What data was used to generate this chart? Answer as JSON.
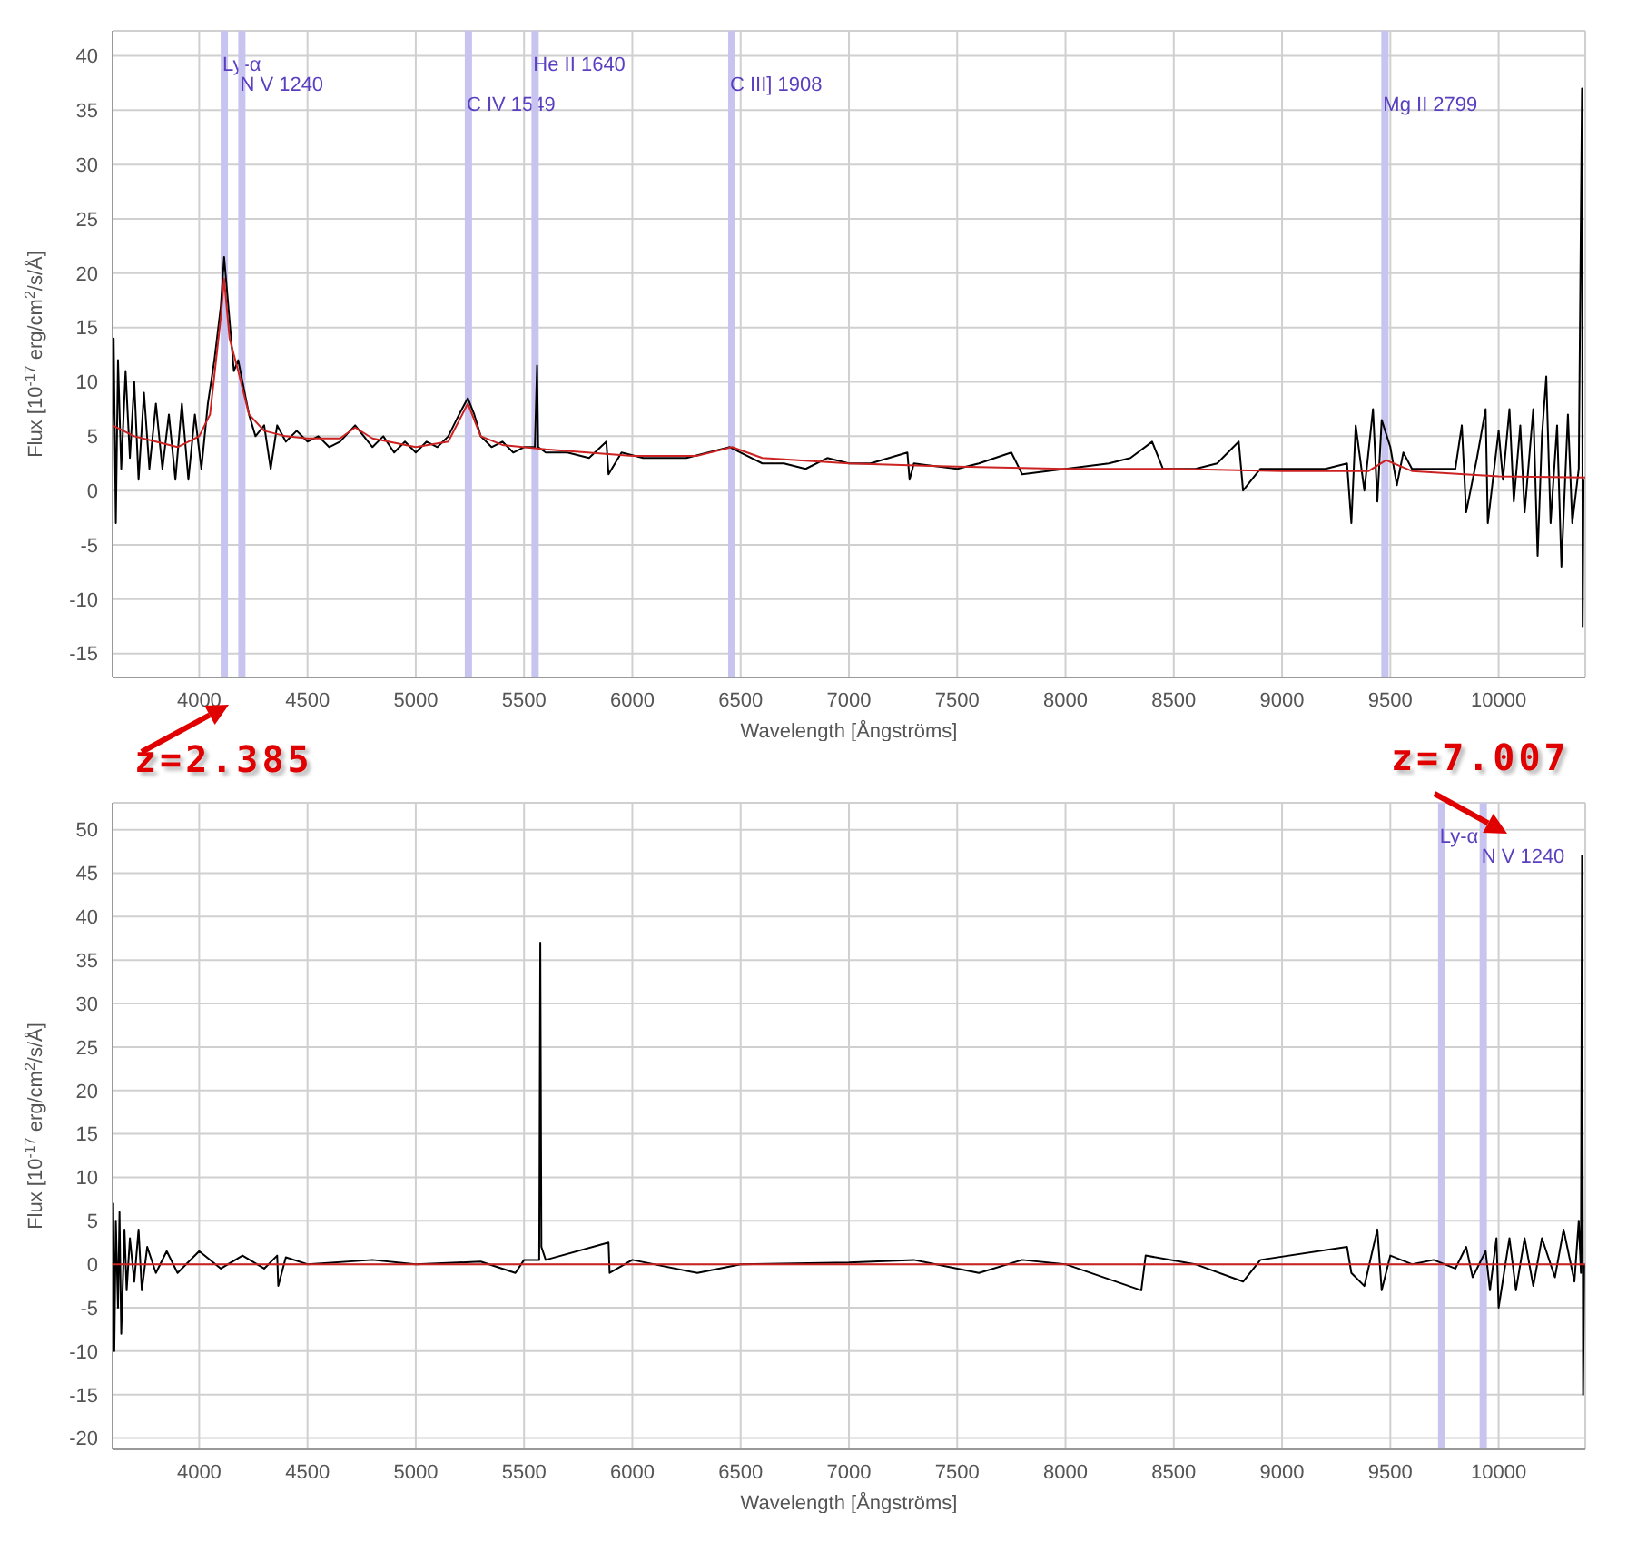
{
  "chart_data": [
    {
      "type": "line",
      "xlabel": "Wavelength [Ångströms]",
      "ylabel": "Flux [10$^{-17}$ erg/cm$^{2}$/s/Å]",
      "xlim": [
        3600,
        10400
      ],
      "xticks": [
        4000,
        4500,
        5000,
        5500,
        6000,
        6500,
        7000,
        7500,
        8000,
        8500,
        9000,
        9500,
        10000
      ],
      "ylim": [
        -17.2,
        42.3
      ],
      "yticks": [
        -15,
        -10,
        -5,
        0,
        5,
        10,
        15,
        20,
        25,
        30,
        35,
        40
      ],
      "grid": true,
      "annotations": [
        "z=2.385"
      ],
      "ref_lines": [
        {
          "axis": "x",
          "value": 4116,
          "label": "Ly-α",
          "color": "#c8c4f0"
        },
        {
          "axis": "x",
          "value": 4197,
          "label": "N V 1240",
          "color": "#c8c4f0"
        },
        {
          "axis": "x",
          "value": 5243,
          "label": "C IV 1549",
          "color": "#c8c4f0"
        },
        {
          "axis": "x",
          "value": 5551,
          "label": "He II 1640",
          "color": "#c8c4f0"
        },
        {
          "axis": "x",
          "value": 6459,
          "label": "C III] 1908",
          "color": "#c8c4f0"
        },
        {
          "axis": "x",
          "value": 9475,
          "label": "Mg II 2799",
          "color": "#c8c4f0"
        }
      ],
      "series": [
        {
          "color": "#000000",
          "x": [
            3600,
            3605,
            3615,
            3625,
            3640,
            3660,
            3680,
            3700,
            3720,
            3745,
            3770,
            3800,
            3830,
            3860,
            3890,
            3920,
            3950,
            3980,
            4010,
            4040,
            4070,
            4100,
            4115,
            4130,
            4160,
            4180,
            4200,
            4230,
            4260,
            4300,
            4330,
            4360,
            4400,
            4450,
            4500,
            4550,
            4600,
            4650,
            4720,
            4760,
            4800,
            4850,
            4900,
            4950,
            5000,
            5050,
            5100,
            5150,
            5200,
            5240,
            5270,
            5300,
            5350,
            5400,
            5450,
            5500,
            5550,
            5560,
            5565,
            5600,
            5700,
            5800,
            5880,
            5890,
            5950,
            6050,
            6150,
            6250,
            6350,
            6450,
            6500,
            6600,
            6700,
            6800,
            6900,
            7000,
            7100,
            7270,
            7280,
            7300,
            7500,
            7600,
            7750,
            7800,
            8000,
            8200,
            8300,
            8400,
            8450,
            8600,
            8700,
            8800,
            8820,
            8900,
            9000,
            9200,
            9300,
            9320,
            9340,
            9380,
            9420,
            9440,
            9460,
            9500,
            9530,
            9560,
            9600,
            9700,
            9800,
            9830,
            9850,
            9900,
            9940,
            9950,
            10000,
            10020,
            10050,
            10070,
            10100,
            10120,
            10160,
            10180,
            10200,
            10220,
            10240,
            10270,
            10290,
            10320,
            10340,
            10370,
            10385,
            10388,
            10392
          ],
          "values": [
            6,
            14,
            -3,
            12,
            2,
            11,
            3,
            10,
            1,
            9,
            2,
            8,
            2,
            7,
            1,
            8,
            1,
            7,
            2,
            8,
            12,
            17,
            21.5,
            18,
            11,
            12,
            10,
            7,
            5,
            6,
            2,
            6,
            4.5,
            5.5,
            4.5,
            5,
            4,
            4.5,
            6,
            5,
            4,
            5,
            3.5,
            4.5,
            3.5,
            4.5,
            4,
            5,
            7,
            8.5,
            7,
            5,
            4,
            4.5,
            3.5,
            4,
            4,
            11.5,
            4,
            3.5,
            3.5,
            3,
            4.5,
            1.5,
            3.5,
            3,
            3,
            3,
            3.5,
            4,
            3.5,
            2.5,
            2.5,
            2,
            3,
            2.5,
            2.5,
            3.5,
            1,
            2.5,
            2,
            2.5,
            3.5,
            1.5,
            2,
            2.5,
            3,
            4.5,
            2,
            2,
            2.5,
            4.5,
            0,
            2,
            2,
            2,
            2.5,
            -3,
            6,
            0,
            7.5,
            -1,
            6.5,
            4,
            0.5,
            3.5,
            2,
            2,
            2,
            6,
            -2,
            3,
            7.5,
            -3,
            5.5,
            1,
            7.5,
            -1,
            6,
            -2,
            7.5,
            -6,
            5,
            10.5,
            -3,
            6,
            -7,
            7,
            -3,
            2,
            37,
            -12.5,
            1
          ]
        },
        {
          "color": "#cc2222",
          "x": [
            3600,
            3700,
            3800,
            3900,
            4000,
            4050,
            4100,
            4115,
            4140,
            4180,
            4230,
            4300,
            4400,
            4500,
            4650,
            4720,
            4800,
            5000,
            5150,
            5240,
            5300,
            5400,
            5600,
            6000,
            6300,
            6460,
            6600,
            7000,
            7500,
            8000,
            8500,
            9000,
            9400,
            9480,
            9600,
            10000,
            10400
          ],
          "values": [
            6,
            5,
            4.5,
            4,
            5,
            7,
            16,
            19.5,
            14,
            11,
            7,
            5.5,
            5,
            4.8,
            4.8,
            5.8,
            4.8,
            4,
            4.5,
            8,
            5,
            4.2,
            3.8,
            3.2,
            3.2,
            4,
            3,
            2.5,
            2.2,
            2,
            2,
            1.8,
            1.8,
            2.8,
            1.8,
            1.3,
            1.2
          ]
        }
      ]
    },
    {
      "type": "line",
      "xlabel": "Wavelength [Ångströms]",
      "ylabel": "Flux [10$^{-17}$ erg/cm$^{2}$/s/Å]",
      "xlim": [
        3600,
        10400
      ],
      "xticks": [
        4000,
        4500,
        5000,
        5500,
        6000,
        6500,
        7000,
        7500,
        8000,
        8500,
        9000,
        9500,
        10000
      ],
      "ylim": [
        -21.3,
        53.1
      ],
      "yticks": [
        -20,
        -15,
        -10,
        -5,
        0,
        5,
        10,
        15,
        20,
        25,
        30,
        35,
        40,
        45,
        50
      ],
      "grid": true,
      "annotations": [
        "z=7.007"
      ],
      "ref_lines": [
        {
          "axis": "x",
          "value": 9737,
          "label": "Ly-α",
          "color": "#c8c4f0"
        },
        {
          "axis": "x",
          "value": 9929,
          "label": "N V 1240",
          "color": "#c8c4f0"
        }
      ],
      "series": [
        {
          "color": "#000000",
          "x": [
            3600,
            3603,
            3608,
            3615,
            3625,
            3632,
            3640,
            3655,
            3665,
            3680,
            3700,
            3720,
            3735,
            3760,
            3800,
            3850,
            3900,
            4000,
            4100,
            4200,
            4300,
            4360,
            4365,
            4400,
            4500,
            4800,
            5000,
            5300,
            5460,
            5500,
            5570,
            5575,
            5580,
            5600,
            5890,
            5895,
            6000,
            6300,
            6500,
            7000,
            7300,
            7600,
            7800,
            8000,
            8350,
            8370,
            8600,
            8820,
            8900,
            9300,
            9320,
            9380,
            9440,
            9460,
            9500,
            9600,
            9700,
            9800,
            9850,
            9880,
            9940,
            9960,
            9990,
            10000,
            10050,
            10080,
            10120,
            10160,
            10200,
            10260,
            10300,
            10350,
            10370,
            10380,
            10385,
            10390,
            10395
          ],
          "values": [
            0,
            7,
            -10,
            5,
            -5,
            6,
            -8,
            4,
            -3,
            3,
            -2,
            4,
            -3,
            2,
            -1,
            1.5,
            -1,
            1.5,
            -0.5,
            1,
            -0.5,
            1,
            -2.5,
            0.8,
            0,
            0.5,
            0,
            0.3,
            -1,
            0.5,
            0.5,
            37,
            2,
            0.5,
            2.5,
            -1,
            0.5,
            -1,
            0,
            0.2,
            0.5,
            -1,
            0.5,
            0,
            -3,
            1,
            0,
            -2,
            0.5,
            2,
            -1,
            -2.5,
            4,
            -3,
            1,
            0,
            0.5,
            -0.5,
            2,
            -1.5,
            1.5,
            -3,
            3,
            -5,
            3,
            -3,
            3,
            -2.5,
            3,
            -1.5,
            4,
            -2,
            5,
            -1,
            47,
            -15,
            0
          ]
        },
        {
          "color": "#cc2222",
          "x": [
            3600,
            5000,
            7000,
            9000,
            10400
          ],
          "values": [
            0,
            0,
            0,
            0,
            0
          ]
        }
      ]
    }
  ]
}
